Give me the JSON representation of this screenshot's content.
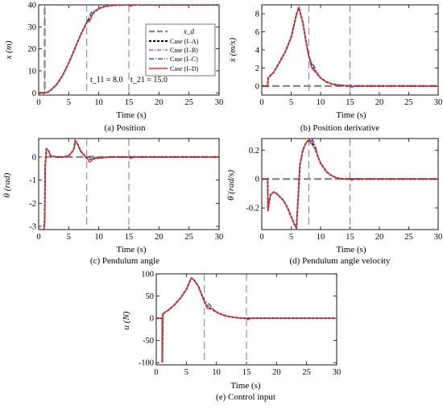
{
  "colors": {
    "xd": "#8c8c8c",
    "case_IA": "#000000",
    "case_IB": "#b04fc8",
    "case_IC": "#2a5cb8",
    "case_ID": "#e03030",
    "vline": "#707070"
  },
  "legend": [
    "x_d",
    "Case (I–A)",
    "Case (I–B)",
    "Case (I–C)",
    "Case (I–D)"
  ],
  "chart_data": [
    {
      "type": "line",
      "ylabel": "x (m)",
      "xlabel": "Time (s)",
      "caption": "(a) Position",
      "xlim": [
        0,
        30
      ],
      "ylim": [
        -1,
        40
      ],
      "xticks": [
        0,
        5,
        10,
        15,
        20,
        25,
        30
      ],
      "yticks": [
        0,
        10,
        20,
        30,
        40
      ],
      "vlines": [
        1,
        8,
        15
      ],
      "annotations": [
        "t_11 = 8.0",
        "t_21 = 15.0"
      ],
      "reference": {
        "name": "x_d",
        "x": [
          0,
          1,
          1,
          30
        ],
        "y": [
          0,
          0,
          40,
          40
        ]
      },
      "series": [
        {
          "name": "Case (I–A)",
          "x": [
            0,
            1,
            1.5,
            2,
            3,
            4,
            5,
            6,
            7,
            8,
            9,
            10,
            11,
            12,
            13,
            14,
            15,
            16,
            18,
            20,
            25,
            30
          ],
          "y": [
            0,
            0,
            0.3,
            1.2,
            3.8,
            8,
            13.5,
            20,
            26.5,
            32,
            36,
            38.3,
            39.3,
            39.7,
            39.9,
            39.97,
            40,
            40,
            40,
            40,
            40,
            40
          ]
        }
      ]
    },
    {
      "type": "line",
      "ylabel": "ẋ (m/s)",
      "xlabel": "Time (s)",
      "caption": "(b) Position derivative",
      "xlim": [
        0,
        30
      ],
      "ylim": [
        -1,
        9
      ],
      "xticks": [
        0,
        5,
        10,
        15,
        20,
        25,
        30
      ],
      "yticks": [
        0,
        2,
        4,
        6,
        8
      ],
      "vlines": [
        8,
        15
      ],
      "reference": {
        "name": "x_d",
        "x": [
          0,
          30
        ],
        "y": [
          0,
          0
        ]
      },
      "series": [
        {
          "name": "Case (I–A)",
          "x": [
            0,
            1,
            1.1,
            2,
            3,
            4,
            5,
            6,
            6.3,
            7,
            7.5,
            8,
            8.5,
            9,
            10,
            11,
            12,
            13,
            14,
            15,
            16,
            20,
            30
          ],
          "y": [
            0,
            0,
            0.9,
            1.5,
            2.6,
            3.8,
            5.4,
            8.2,
            8.7,
            7,
            5,
            3.3,
            2.3,
            1.7,
            0.9,
            0.45,
            0.22,
            0.1,
            0.05,
            0.02,
            0,
            0,
            0
          ]
        }
      ]
    },
    {
      "type": "line",
      "ylabel": "θ (rad)",
      "xlabel": "Time (s)",
      "caption": "(c) Pendulum angle",
      "xlim": [
        0,
        30
      ],
      "ylim": [
        -3.14,
        0.8
      ],
      "xticks": [
        0,
        5,
        10,
        15,
        20,
        25,
        30
      ],
      "yticks": [
        -3,
        -2,
        -1,
        0
      ],
      "vlines": [
        8,
        15
      ],
      "reference": {
        "name": "x_d",
        "x": [
          1,
          30
        ],
        "y": [
          0,
          0
        ]
      },
      "series": [
        {
          "name": "Case (I–A)",
          "x": [
            0,
            0.9,
            1,
            1.1,
            1.3,
            1.6,
            2,
            3,
            4,
            5,
            5.8,
            6.1,
            6.5,
            7,
            7.5,
            8,
            8.5,
            9,
            10,
            11,
            12,
            13,
            14,
            15,
            16,
            17,
            20,
            30
          ],
          "y": [
            -3.14,
            -3.14,
            -2.7,
            -0.3,
            0.35,
            0.3,
            0.05,
            0,
            0,
            0.05,
            0.3,
            0.7,
            0.55,
            0.25,
            0.1,
            -0.05,
            -0.1,
            -0.08,
            -0.04,
            -0.02,
            0,
            0,
            0,
            0,
            0,
            0,
            0,
            0
          ]
        }
      ]
    },
    {
      "type": "line",
      "ylabel": "θ̇ (rad/s)",
      "xlabel": "Time (s)",
      "caption": "(d) Pendulum angle velocity",
      "xlim": [
        0,
        30
      ],
      "ylim": [
        -0.35,
        0.28
      ],
      "xticks": [
        0,
        5,
        10,
        15,
        20,
        25,
        30
      ],
      "yticks": [
        -0.2,
        0.0,
        0.2
      ],
      "vlines": [
        8,
        15
      ],
      "reference": {
        "name": "x_d",
        "x": [
          0,
          30
        ],
        "y": [
          0,
          0
        ]
      },
      "series": [
        {
          "name": "Case (I–A)",
          "x": [
            0,
            1,
            1.05,
            1.2,
            1.5,
            2,
            2.5,
            3,
            3.5,
            4,
            4.5,
            5,
            5.5,
            5.9,
            6.2,
            6.5,
            7,
            7.5,
            8,
            8.5,
            9,
            9.5,
            10,
            11,
            12,
            13,
            14,
            15,
            16,
            20,
            30
          ],
          "y": [
            0,
            0,
            -0.22,
            -0.17,
            -0.11,
            -0.09,
            -0.1,
            -0.12,
            -0.14,
            -0.17,
            -0.21,
            -0.26,
            -0.31,
            -0.34,
            -0.12,
            0.1,
            0.2,
            0.25,
            0.27,
            0.26,
            0.22,
            0.16,
            0.11,
            0.05,
            0.02,
            0.005,
            0,
            0,
            0,
            0,
            0
          ]
        }
      ]
    },
    {
      "type": "line",
      "ylabel": "u (N)",
      "xlabel": "Time (s)",
      "caption": "(e) Control input",
      "xlim": [
        0,
        30
      ],
      "ylim": [
        -105,
        100
      ],
      "xticks": [
        0,
        5,
        10,
        15,
        20,
        25,
        30
      ],
      "yticks": [
        -100,
        -50,
        0,
        50,
        100
      ],
      "vlines": [
        8,
        15
      ],
      "series": [
        {
          "name": "Case (I–A)",
          "x": [
            0,
            1,
            1,
            1.1,
            1.5,
            2,
            3,
            4,
            5,
            5.8,
            6.2,
            7,
            7.5,
            8,
            8.5,
            9,
            10,
            11,
            12,
            13,
            14,
            15,
            20,
            30
          ],
          "y": [
            0,
            0,
            -100,
            10,
            14,
            18,
            30,
            45,
            65,
            90,
            88,
            72,
            55,
            38,
            28,
            22,
            14,
            8,
            4,
            2,
            0.5,
            0,
            0,
            0
          ]
        }
      ]
    }
  ]
}
